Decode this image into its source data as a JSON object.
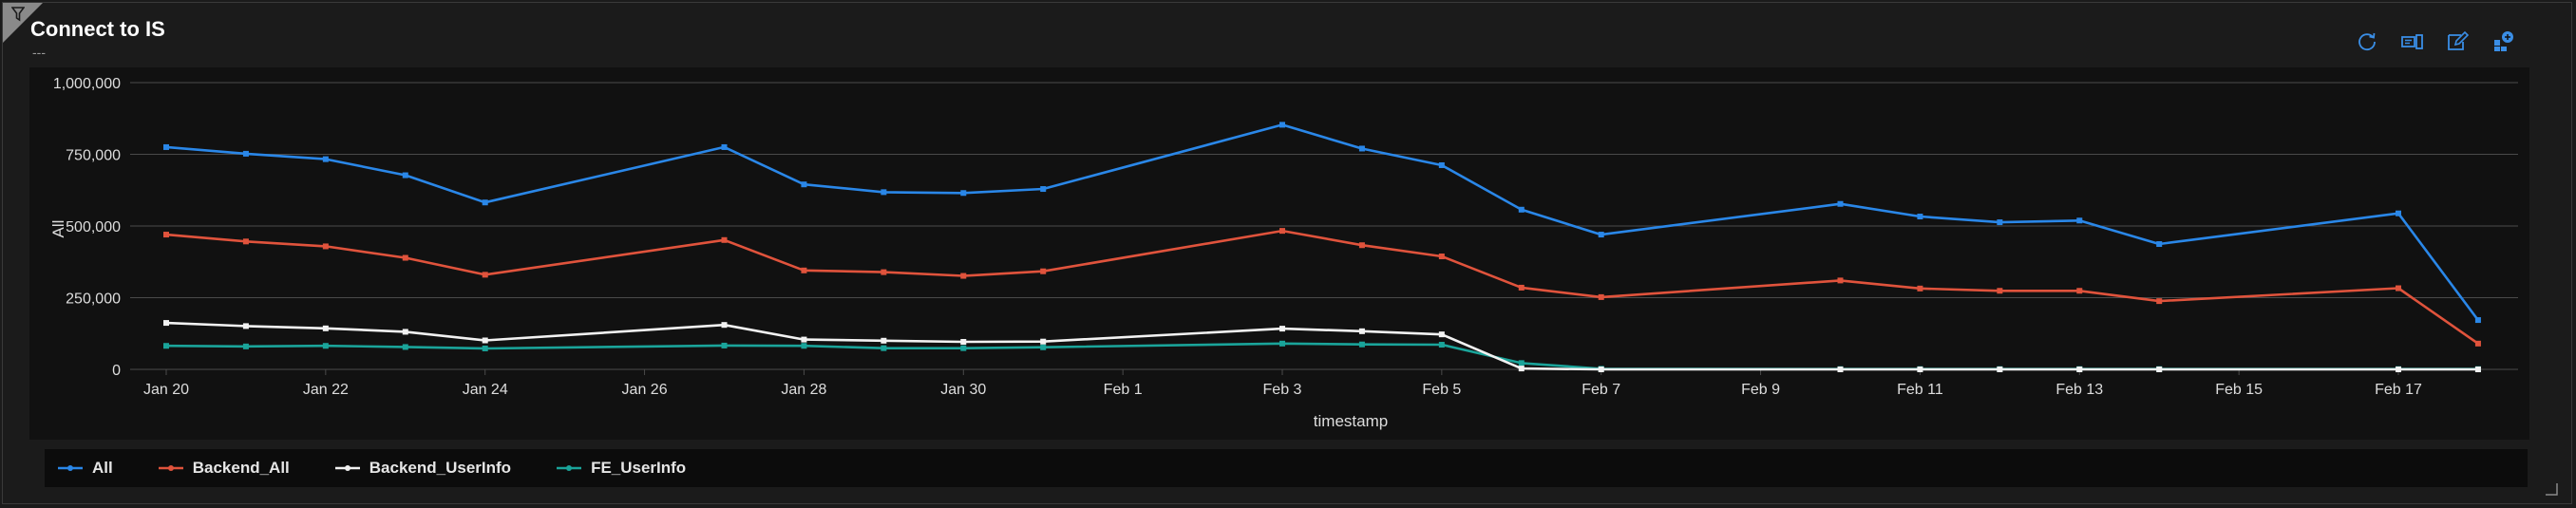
{
  "panel": {
    "title": "Connect to IS",
    "subtitle": "---",
    "corner_icon": "filter-icon",
    "toolbar": [
      {
        "name": "refresh-icon"
      },
      {
        "name": "query-icon"
      },
      {
        "name": "edit-icon"
      },
      {
        "name": "dashboard-icon"
      }
    ]
  },
  "colors": {
    "All": "#2a87e8",
    "Backend_All": "#e0533c",
    "Backend_UserInfo": "#f2f2f2",
    "FE_UserInfo": "#1aa49a",
    "grid": "#4a4a4a",
    "axis_text": "#dddddd"
  },
  "chart_data": {
    "type": "line",
    "xlabel": "timestamp",
    "ylabel": "All",
    "ylim": [
      0,
      1000000
    ],
    "grid": true,
    "legend": "bottom",
    "y_ticks": [
      {
        "v": 0,
        "label": "0"
      },
      {
        "v": 250000,
        "label": "250,000"
      },
      {
        "v": 500000,
        "label": "500,000"
      },
      {
        "v": 750000,
        "label": "750,000"
      },
      {
        "v": 1000000,
        "label": "1,000,000"
      }
    ],
    "x_ticks": [
      {
        "day": 20,
        "label": "Jan 20"
      },
      {
        "day": 22,
        "label": "Jan 22"
      },
      {
        "day": 24,
        "label": "Jan 24"
      },
      {
        "day": 26,
        "label": "Jan 26"
      },
      {
        "day": 28,
        "label": "Jan 28"
      },
      {
        "day": 30,
        "label": "Jan 30"
      },
      {
        "day": 32,
        "label": "Feb 1"
      },
      {
        "day": 34,
        "label": "Feb 3"
      },
      {
        "day": 36,
        "label": "Feb 5"
      },
      {
        "day": 38,
        "label": "Feb 7"
      },
      {
        "day": 40,
        "label": "Feb 9"
      },
      {
        "day": 42,
        "label": "Feb 11"
      },
      {
        "day": 44,
        "label": "Feb 13"
      },
      {
        "day": 46,
        "label": "Feb 15"
      },
      {
        "day": 48,
        "label": "Feb 17"
      }
    ],
    "x_range": [
      20,
      49
    ],
    "series": [
      {
        "name": "All",
        "points": [
          [
            20,
            775000
          ],
          [
            21,
            752000
          ],
          [
            22,
            733000
          ],
          [
            23,
            677000
          ],
          [
            24,
            582000
          ],
          [
            27,
            775000
          ],
          [
            28,
            645000
          ],
          [
            29,
            618000
          ],
          [
            30,
            615000
          ],
          [
            31,
            629000
          ],
          [
            34,
            853000
          ],
          [
            35,
            770000
          ],
          [
            36,
            712000
          ],
          [
            37,
            557000
          ],
          [
            38,
            470000
          ],
          [
            41,
            577000
          ],
          [
            42,
            533000
          ],
          [
            43,
            513000
          ],
          [
            44,
            519000
          ],
          [
            45,
            437000
          ],
          [
            48,
            544000
          ],
          [
            49,
            172000
          ]
        ]
      },
      {
        "name": "Backend_All",
        "points": [
          [
            20,
            470000
          ],
          [
            21,
            446000
          ],
          [
            22,
            429000
          ],
          [
            23,
            389000
          ],
          [
            24,
            330000
          ],
          [
            27,
            451000
          ],
          [
            28,
            345000
          ],
          [
            29,
            339000
          ],
          [
            30,
            326000
          ],
          [
            31,
            342000
          ],
          [
            34,
            483000
          ],
          [
            35,
            433000
          ],
          [
            36,
            394000
          ],
          [
            37,
            285000
          ],
          [
            38,
            252000
          ],
          [
            41,
            310000
          ],
          [
            42,
            282000
          ],
          [
            43,
            274000
          ],
          [
            44,
            274000
          ],
          [
            45,
            238000
          ],
          [
            48,
            283000
          ],
          [
            49,
            90000
          ]
        ]
      },
      {
        "name": "Backend_UserInfo",
        "points": [
          [
            20,
            162000
          ],
          [
            21,
            151000
          ],
          [
            22,
            143000
          ],
          [
            23,
            131000
          ],
          [
            24,
            101000
          ],
          [
            27,
            155000
          ],
          [
            28,
            104000
          ],
          [
            29,
            100000
          ],
          [
            30,
            96000
          ],
          [
            31,
            97000
          ],
          [
            34,
            142000
          ],
          [
            35,
            133000
          ],
          [
            36,
            122000
          ],
          [
            37,
            3000
          ],
          [
            38,
            0
          ],
          [
            41,
            0
          ],
          [
            42,
            0
          ],
          [
            43,
            0
          ],
          [
            44,
            0
          ],
          [
            45,
            0
          ],
          [
            48,
            0
          ],
          [
            49,
            0
          ]
        ]
      },
      {
        "name": "FE_UserInfo",
        "points": [
          [
            20,
            82000
          ],
          [
            21,
            80000
          ],
          [
            22,
            82000
          ],
          [
            23,
            78000
          ],
          [
            24,
            73000
          ],
          [
            27,
            83000
          ],
          [
            28,
            82000
          ],
          [
            29,
            74000
          ],
          [
            30,
            74000
          ],
          [
            31,
            77000
          ],
          [
            34,
            90000
          ],
          [
            35,
            87000
          ],
          [
            36,
            86000
          ],
          [
            37,
            22000
          ],
          [
            38,
            2000
          ],
          [
            41,
            1000
          ],
          [
            42,
            1000
          ],
          [
            43,
            1000
          ],
          [
            44,
            1000
          ],
          [
            45,
            1000
          ],
          [
            48,
            1000
          ],
          [
            49,
            1000
          ]
        ]
      }
    ]
  }
}
